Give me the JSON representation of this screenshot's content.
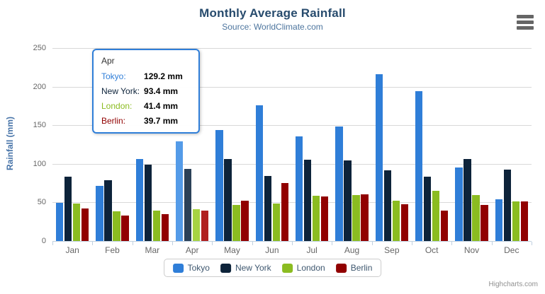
{
  "chart_data": {
    "type": "bar",
    "title": "Monthly Average Rainfall",
    "subtitle": "Source: WorldClimate.com",
    "xlabel": "",
    "ylabel": "Rainfall (mm)",
    "ylim": [
      0,
      250
    ],
    "ytick_interval": 50,
    "unit": "mm",
    "grid": true,
    "legend_position": "bottom",
    "categories": [
      "Jan",
      "Feb",
      "Mar",
      "Apr",
      "May",
      "Jun",
      "Jul",
      "Aug",
      "Sep",
      "Oct",
      "Nov",
      "Dec"
    ],
    "series": [
      {
        "name": "Tokyo",
        "color": "#2f7ed8",
        "hover_color": "#549be8",
        "values": [
          49.9,
          71.5,
          106.4,
          129.2,
          144.0,
          176.0,
          135.6,
          148.5,
          216.4,
          194.1,
          95.6,
          54.4
        ]
      },
      {
        "name": "New York",
        "color": "#0d233a",
        "hover_color": "#2b4158",
        "values": [
          83.6,
          78.8,
          98.5,
          93.4,
          106.0,
          84.5,
          105.0,
          104.3,
          91.2,
          83.5,
          106.6,
          92.3
        ]
      },
      {
        "name": "London",
        "color": "#8bbc21",
        "hover_color": "#a7d343",
        "values": [
          48.9,
          38.8,
          39.3,
          41.4,
          47.0,
          48.3,
          59.0,
          59.6,
          52.4,
          65.2,
          59.3,
          51.2
        ]
      },
      {
        "name": "Berlin",
        "color": "#910000",
        "hover_color": "#b02020",
        "values": [
          42.4,
          33.2,
          34.5,
          39.7,
          52.6,
          75.5,
          57.4,
          60.4,
          47.6,
          39.1,
          46.8,
          51.1
        ]
      }
    ],
    "hovered_category": "Apr"
  },
  "tooltip": {
    "header": "Apr",
    "border_color": "#2f7ed8",
    "rows": [
      {
        "label": "Tokyo:",
        "value": "129.2 mm",
        "color": "#2f7ed8"
      },
      {
        "label": "New York:",
        "value": "93.4 mm",
        "color": "#0d233a"
      },
      {
        "label": "London:",
        "value": "41.4 mm",
        "color": "#8bbc21"
      },
      {
        "label": "Berlin:",
        "value": "39.7 mm",
        "color": "#910000"
      }
    ]
  },
  "credits": {
    "label": "Highcharts.com"
  }
}
